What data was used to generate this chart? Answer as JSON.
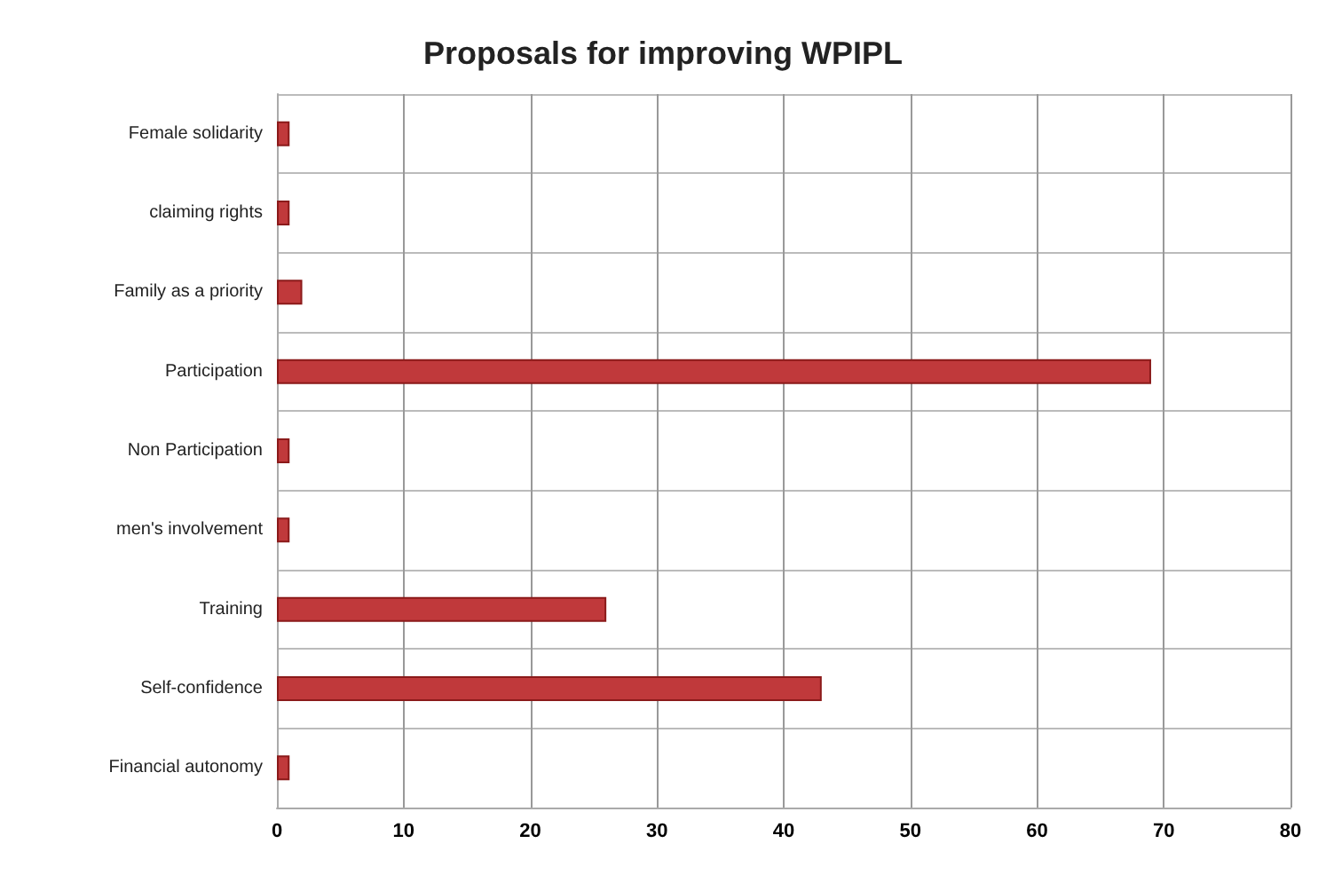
{
  "chart_data": {
    "type": "bar",
    "orientation": "horizontal",
    "title": "Proposals for improving WPIPL",
    "categories": [
      "Female solidarity",
      "claiming rights",
      "Family as a priority",
      "Participation",
      "Non Participation",
      "men's involvement",
      "Training",
      "Self-confidence",
      "Financial autonomy"
    ],
    "values": [
      1,
      1,
      2,
      69,
      1,
      1,
      26,
      43,
      1
    ],
    "color": "#c0393b",
    "xlim": [
      0,
      80
    ],
    "xticks": [
      0,
      10,
      20,
      30,
      40,
      50,
      60,
      70,
      80
    ],
    "grid": true
  }
}
